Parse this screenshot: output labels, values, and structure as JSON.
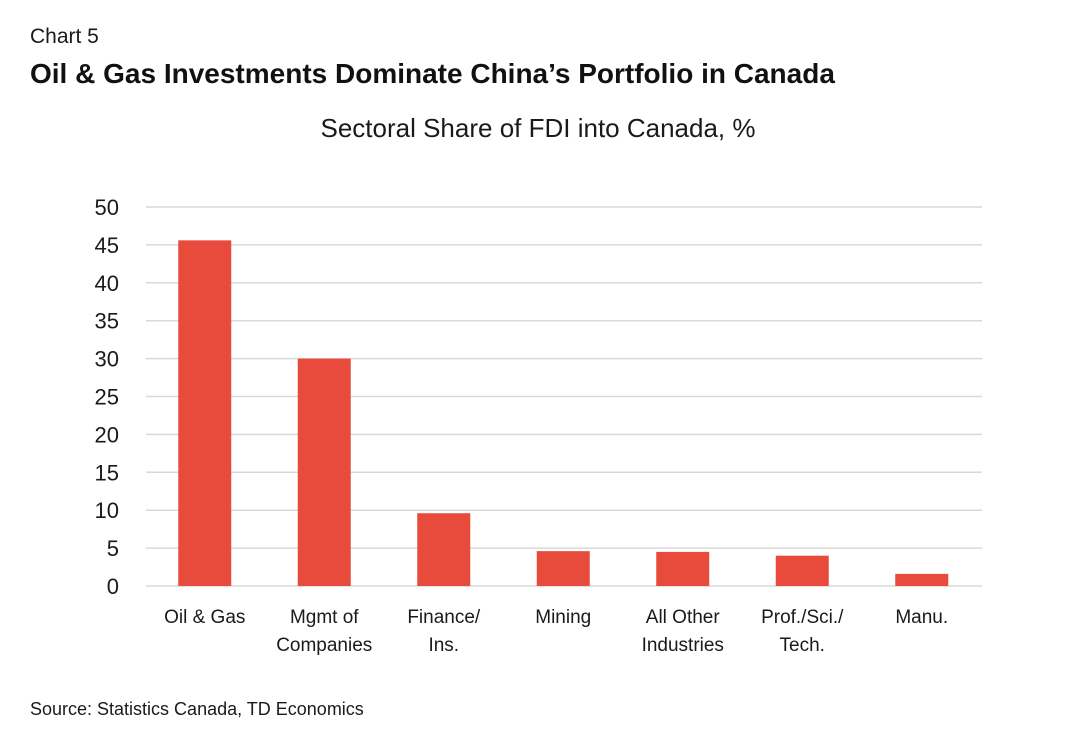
{
  "header": {
    "chart_number": "Chart 5",
    "headline": "Oil & Gas Investments Dominate China’s Portfolio in Canada"
  },
  "footer": {
    "source": "Source: Statistics Canada, TD Economics"
  },
  "colors": {
    "bar": "#e84b3c",
    "grid": "#d9d9d9",
    "text": "#1a1a1a"
  },
  "chart_data": {
    "type": "bar",
    "title": "Sectoral Share of FDI into Canada, %",
    "xlabel": "",
    "ylabel": "",
    "ylim": [
      0,
      50
    ],
    "yticks": [
      0,
      5,
      10,
      15,
      20,
      25,
      30,
      35,
      40,
      45,
      50
    ],
    "grid": true,
    "categories": [
      [
        "Oil & Gas"
      ],
      [
        "Mgmt of",
        "Companies"
      ],
      [
        "Finance/",
        "Ins."
      ],
      [
        "Mining"
      ],
      [
        "All Other",
        "Industries"
      ],
      [
        "Prof./Sci./",
        "Tech."
      ],
      [
        "Manu."
      ]
    ],
    "values": [
      45.6,
      30.0,
      9.6,
      4.6,
      4.5,
      4.0,
      1.6
    ]
  }
}
